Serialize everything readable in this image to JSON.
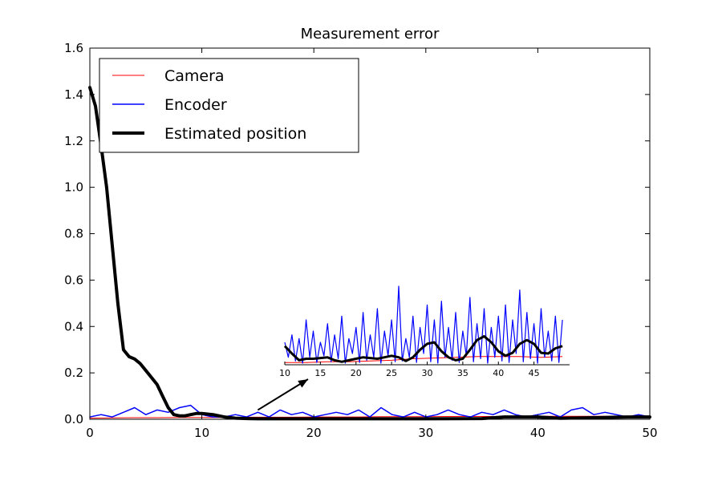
{
  "chart_data": {
    "type": "line",
    "title": "Measurement error",
    "xlabel": "",
    "ylabel": "",
    "xlim": [
      0,
      50
    ],
    "ylim": [
      0,
      1.6
    ],
    "x_ticks": [
      "0",
      "10",
      "20",
      "30",
      "40",
      "50"
    ],
    "y_ticks": [
      "0.0",
      "0.2",
      "0.4",
      "0.6",
      "0.8",
      "1.0",
      "1.2",
      "1.4",
      "1.6"
    ],
    "grid": false,
    "legend_position": "top-left",
    "series": [
      {
        "name": "Camera",
        "color": "#ff0000",
        "x": [
          0,
          2,
          4,
          6,
          8,
          10,
          12,
          14,
          16,
          18,
          20,
          22,
          24,
          26,
          28,
          30,
          32,
          34,
          36,
          38,
          40,
          42,
          44,
          46,
          48,
          50
        ],
        "y": [
          0.005,
          0.006,
          0.007,
          0.007,
          0.008,
          0.008,
          0.008,
          0.009,
          0.009,
          0.009,
          0.01,
          0.01,
          0.01,
          0.011,
          0.011,
          0.011,
          0.012,
          0.012,
          0.012,
          0.012,
          0.013,
          0.013,
          0.013,
          0.013,
          0.013,
          0.014
        ]
      },
      {
        "name": "Encoder",
        "color": "#0000ff",
        "x": [
          0,
          1,
          2,
          3,
          4,
          5,
          6,
          7,
          8,
          9,
          10,
          11,
          12,
          13,
          14,
          15,
          16,
          17,
          18,
          19,
          20,
          21,
          22,
          23,
          24,
          25,
          26,
          27,
          28,
          29,
          30,
          31,
          32,
          33,
          34,
          35,
          36,
          37,
          38,
          39,
          40,
          41,
          42,
          43,
          44,
          45,
          46,
          47,
          48,
          49,
          50
        ],
        "y": [
          0.01,
          0.02,
          0.01,
          0.03,
          0.05,
          0.02,
          0.04,
          0.03,
          0.05,
          0.06,
          0.02,
          0.01,
          0.01,
          0.02,
          0.01,
          0.03,
          0.01,
          0.04,
          0.02,
          0.03,
          0.01,
          0.02,
          0.03,
          0.02,
          0.04,
          0.01,
          0.05,
          0.02,
          0.01,
          0.03,
          0.01,
          0.02,
          0.04,
          0.02,
          0.01,
          0.03,
          0.02,
          0.04,
          0.02,
          0.01,
          0.02,
          0.03,
          0.01,
          0.04,
          0.05,
          0.02,
          0.03,
          0.02,
          0.01,
          0.02,
          0.01
        ]
      },
      {
        "name": "Estimated position",
        "color": "#000000",
        "x": [
          0,
          0.5,
          1,
          1.5,
          2,
          2.5,
          3,
          3.5,
          4,
          4.5,
          5,
          5.5,
          6,
          6.5,
          7,
          7.5,
          8,
          8.5,
          9,
          9.5,
          10,
          11,
          12,
          13,
          14,
          15,
          20,
          25,
          30,
          35,
          37,
          40,
          42,
          44,
          46,
          48,
          50
        ],
        "y": [
          1.43,
          1.35,
          1.18,
          1.0,
          0.75,
          0.5,
          0.3,
          0.27,
          0.26,
          0.24,
          0.21,
          0.18,
          0.15,
          0.1,
          0.05,
          0.02,
          0.015,
          0.015,
          0.02,
          0.025,
          0.025,
          0.02,
          0.01,
          0.005,
          0.003,
          0.002,
          0.002,
          0.002,
          0.002,
          0.003,
          0.01,
          0.01,
          0.004,
          0.006,
          0.008,
          0.01,
          0.01
        ]
      }
    ],
    "inset": {
      "xlim": [
        10,
        50
      ],
      "ylim": [
        0,
        0.12
      ],
      "x_ticks": [
        "10",
        "15",
        "20",
        "25",
        "30",
        "35",
        "40",
        "45"
      ],
      "annotation": "arrow from main plot near x=15 pointing to inset",
      "series": [
        {
          "name": "Camera",
          "x": [
            10,
            13,
            16,
            19,
            22,
            25,
            28,
            31,
            34,
            37,
            40,
            43,
            46,
            49
          ],
          "y": [
            0.003,
            0.003,
            0.004,
            0.004,
            0.005,
            0.006,
            0.008,
            0.009,
            0.01,
            0.011,
            0.011,
            0.011,
            0.01,
            0.011
          ]
        },
        {
          "name": "Encoder",
          "x": [
            10,
            10.5,
            11,
            11.5,
            12,
            12.5,
            13,
            13.5,
            14,
            14.5,
            15,
            15.5,
            16,
            16.5,
            17,
            17.5,
            18,
            18.5,
            19,
            19.5,
            20,
            20.5,
            21,
            21.5,
            22,
            22.5,
            23,
            23.5,
            24,
            24.5,
            25,
            25.5,
            26,
            26.5,
            27,
            27.5,
            28,
            28.5,
            29,
            29.5,
            30,
            30.5,
            31,
            31.5,
            32,
            32.5,
            33,
            33.5,
            34,
            34.5,
            35,
            35.5,
            36,
            36.5,
            37,
            37.5,
            38,
            38.5,
            39,
            39.5,
            40,
            40.5,
            41,
            41.5,
            42,
            42.5,
            43,
            43.5,
            44,
            44.5,
            45,
            45.5,
            46,
            46.5,
            47,
            47.5,
            48,
            48.5,
            49
          ],
          "y": [
            0.03,
            0.01,
            0.04,
            0.005,
            0.035,
            0.002,
            0.06,
            0.01,
            0.045,
            0.003,
            0.03,
            0.012,
            0.055,
            0.004,
            0.04,
            0.008,
            0.065,
            0.002,
            0.035,
            0.015,
            0.05,
            0.003,
            0.07,
            0.006,
            0.04,
            0.01,
            0.075,
            0.002,
            0.045,
            0.012,
            0.06,
            0.004,
            0.105,
            0.005,
            0.035,
            0.01,
            0.065,
            0.003,
            0.05,
            0.015,
            0.08,
            0.004,
            0.06,
            0.002,
            0.085,
            0.01,
            0.05,
            0.006,
            0.07,
            0.003,
            0.045,
            0.012,
            0.09,
            0.004,
            0.055,
            0.008,
            0.075,
            0.002,
            0.05,
            0.01,
            0.065,
            0.005,
            0.08,
            0.003,
            0.06,
            0.015,
            0.1,
            0.004,
            0.07,
            0.008,
            0.055,
            0.002,
            0.075,
            0.01,
            0.045,
            0.005,
            0.065,
            0.003,
            0.06
          ]
        },
        {
          "name": "Estimated position",
          "x": [
            10,
            11,
            12,
            13,
            14,
            15,
            16,
            17,
            18,
            19,
            20,
            21,
            22,
            23,
            24,
            25,
            26,
            27,
            28,
            29,
            30,
            31,
            32,
            33,
            34,
            35,
            36,
            37,
            38,
            39,
            40,
            41,
            42,
            43,
            44,
            45,
            46,
            47,
            48,
            49
          ],
          "y": [
            0.025,
            0.015,
            0.006,
            0.008,
            0.008,
            0.009,
            0.01,
            0.006,
            0.004,
            0.006,
            0.008,
            0.01,
            0.009,
            0.008,
            0.01,
            0.012,
            0.01,
            0.005,
            0.01,
            0.02,
            0.028,
            0.03,
            0.018,
            0.01,
            0.006,
            0.008,
            0.02,
            0.033,
            0.038,
            0.03,
            0.018,
            0.012,
            0.016,
            0.028,
            0.033,
            0.028,
            0.016,
            0.015,
            0.022,
            0.025
          ]
        }
      ]
    }
  }
}
